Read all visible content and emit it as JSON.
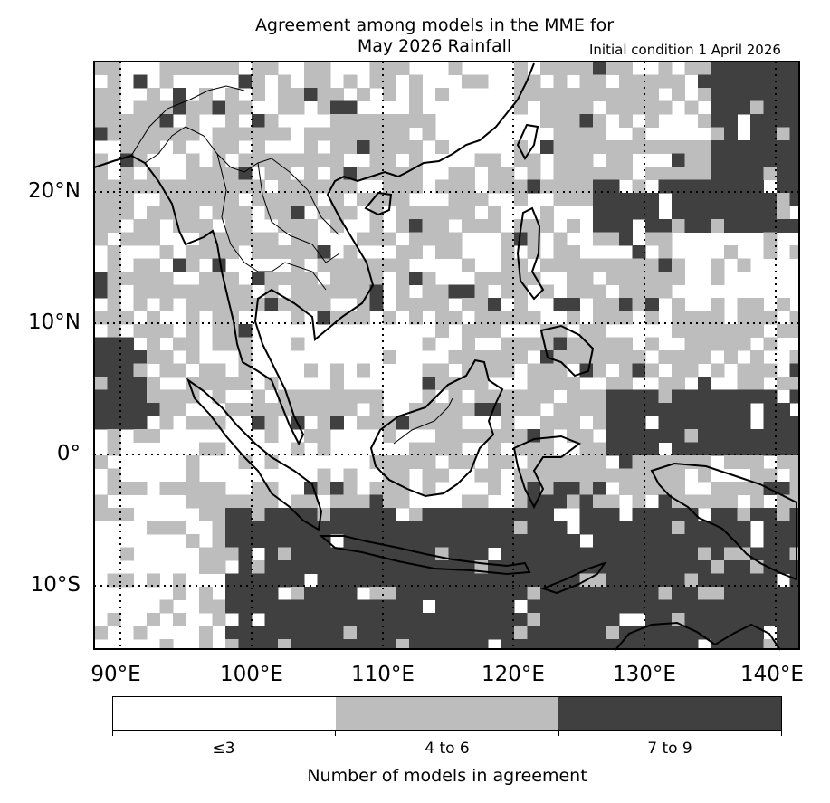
{
  "title": {
    "line1": "Agreement among models in the MME for",
    "line2": "May 2026  Rainfall",
    "initial_condition": "Initial condition 1 April 2026"
  },
  "map": {
    "region": "Southeast Asia",
    "lon_range": [
      88,
      142
    ],
    "lat_range": [
      -15,
      30
    ],
    "grid_step_deg": 1.5,
    "lat_ticks": [
      "20°N",
      "10°N",
      "0°",
      "10°S"
    ],
    "lon_ticks": [
      "90°E",
      "100°E",
      "110°E",
      "120°E",
      "130°E",
      "140°E"
    ],
    "gridlines": "dotted at 10° intervals"
  },
  "colorbar": {
    "title": "Number of models in agreement",
    "categories": [
      {
        "label": "≤3",
        "color": "#ffffff"
      },
      {
        "label": "4 to 6",
        "color": "#bdbdbd"
      },
      {
        "label": "7 to 9",
        "color": "#404040"
      }
    ]
  }
}
